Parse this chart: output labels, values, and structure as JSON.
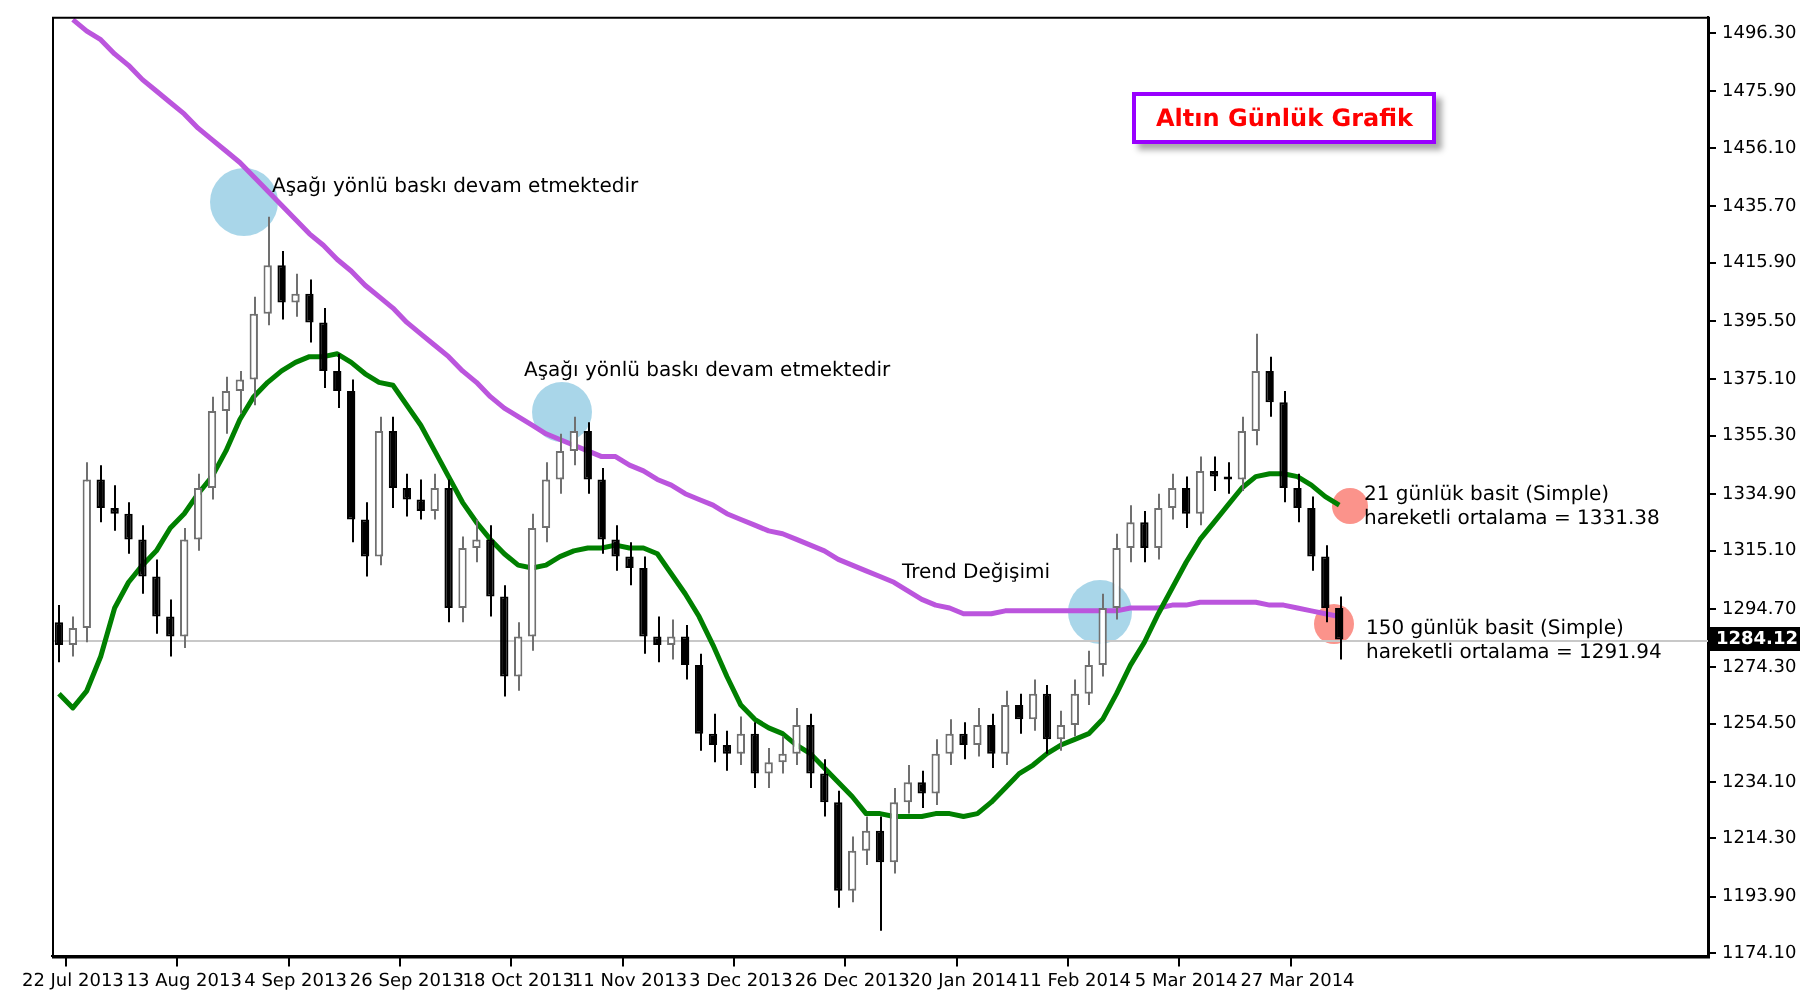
{
  "chart_data": {
    "type": "candlestick",
    "title": "Altın Günlük Grafik",
    "categories": [
      null,
      "22 Jul 2013",
      null,
      null,
      null,
      null,
      null,
      null,
      null,
      "13 Aug 2013",
      null,
      null,
      null,
      null,
      null,
      null,
      null,
      "4 Sep 2013",
      null,
      null,
      null,
      null,
      null,
      null,
      null,
      "26 Sep 2013",
      null,
      null,
      null,
      null,
      null,
      null,
      null,
      "18 Oct 2013",
      null,
      null,
      null,
      null,
      null,
      null,
      null,
      "11 Nov 2013",
      null,
      null,
      null,
      null,
      null,
      null,
      null,
      "3 Dec 2013",
      null,
      null,
      null,
      null,
      null,
      null,
      null,
      "26 Dec 2013",
      null,
      null,
      null,
      null,
      null,
      null,
      null,
      "20 Jan 2014",
      null,
      null,
      null,
      null,
      null,
      null,
      null,
      "11 Feb 2014",
      null,
      null,
      null,
      null,
      null,
      null,
      null,
      "5 Mar 2014",
      null,
      null,
      null,
      null,
      null,
      null,
      null,
      "27 Mar 2014",
      null,
      null,
      null,
      null,
      null,
      null,
      null,
      null,
      null,
      null,
      null,
      null,
      null,
      null,
      null,
      null,
      null,
      null,
      null,
      null,
      null,
      null,
      null,
      null,
      null,
      null,
      null,
      null,
      null
    ],
    "ohlc": [
      [
        1290,
        1296,
        1276,
        1282
      ],
      [
        1282,
        1292,
        1278,
        1288
      ],
      [
        1288,
        1346,
        1283,
        1340
      ],
      [
        1340,
        1345,
        1325,
        1330
      ],
      [
        1330,
        1338,
        1322,
        1328
      ],
      [
        1328,
        1332,
        1314,
        1319
      ],
      [
        1319,
        1324,
        1300,
        1306
      ],
      [
        1306,
        1312,
        1286,
        1292
      ],
      [
        1292,
        1298,
        1278,
        1285
      ],
      [
        1285,
        1323,
        1281,
        1319
      ],
      [
        1319,
        1342,
        1315,
        1337
      ],
      [
        1337,
        1369,
        1333,
        1364
      ],
      [
        1364,
        1376,
        1356,
        1371
      ],
      [
        1371,
        1378,
        1363,
        1375
      ],
      [
        1375,
        1404,
        1366,
        1398
      ],
      [
        1398,
        1432,
        1394,
        1415
      ],
      [
        1415,
        1420,
        1396,
        1402
      ],
      [
        1402,
        1412,
        1397,
        1405
      ],
      [
        1405,
        1410,
        1388,
        1395
      ],
      [
        1395,
        1400,
        1372,
        1378
      ],
      [
        1378,
        1384,
        1365,
        1371
      ],
      [
        1371,
        1375,
        1318,
        1326
      ],
      [
        1326,
        1332,
        1306,
        1313
      ],
      [
        1313,
        1362,
        1310,
        1357
      ],
      [
        1357,
        1362,
        1330,
        1337
      ],
      [
        1337,
        1342,
        1327,
        1333
      ],
      [
        1333,
        1340,
        1326,
        1329
      ],
      [
        1329,
        1342,
        1326,
        1337
      ],
      [
        1337,
        1340,
        1290,
        1295
      ],
      [
        1295,
        1320,
        1290,
        1316
      ],
      [
        1316,
        1326,
        1311,
        1319
      ],
      [
        1319,
        1324,
        1292,
        1299
      ],
      [
        1299,
        1303,
        1264,
        1271
      ],
      [
        1271,
        1290,
        1266,
        1285
      ],
      [
        1285,
        1328,
        1280,
        1323
      ],
      [
        1323,
        1346,
        1318,
        1340
      ],
      [
        1340,
        1356,
        1335,
        1350
      ],
      [
        1350,
        1362,
        1345,
        1357
      ],
      [
        1357,
        1360,
        1335,
        1340
      ],
      [
        1340,
        1344,
        1314,
        1319
      ],
      [
        1319,
        1324,
        1308,
        1313
      ],
      [
        1313,
        1318,
        1303,
        1309
      ],
      [
        1309,
        1313,
        1279,
        1285
      ],
      [
        1285,
        1292,
        1276,
        1282
      ],
      [
        1282,
        1291,
        1277,
        1285
      ],
      [
        1285,
        1289,
        1270,
        1275
      ],
      [
        1275,
        1279,
        1245,
        1251
      ],
      [
        1251,
        1258,
        1241,
        1247
      ],
      [
        1247,
        1252,
        1238,
        1244
      ],
      [
        1244,
        1257,
        1240,
        1251
      ],
      [
        1251,
        1255,
        1232,
        1237
      ],
      [
        1237,
        1246,
        1232,
        1241
      ],
      [
        1241,
        1250,
        1237,
        1244
      ],
      [
        1244,
        1260,
        1240,
        1254
      ],
      [
        1254,
        1258,
        1232,
        1237
      ],
      [
        1237,
        1242,
        1222,
        1227
      ],
      [
        1227,
        1231,
        1190,
        1196
      ],
      [
        1196,
        1215,
        1192,
        1210
      ],
      [
        1210,
        1222,
        1205,
        1217
      ],
      [
        1217,
        1222,
        1182,
        1206
      ],
      [
        1206,
        1232,
        1202,
        1227
      ],
      [
        1227,
        1240,
        1223,
        1234
      ],
      [
        1234,
        1238,
        1225,
        1230
      ],
      [
        1230,
        1249,
        1226,
        1244
      ],
      [
        1244,
        1256,
        1240,
        1251
      ],
      [
        1251,
        1255,
        1242,
        1247
      ],
      [
        1247,
        1260,
        1243,
        1254
      ],
      [
        1254,
        1258,
        1239,
        1244
      ],
      [
        1244,
        1266,
        1240,
        1261
      ],
      [
        1261,
        1265,
        1251,
        1256
      ],
      [
        1256,
        1270,
        1252,
        1265
      ],
      [
        1265,
        1268,
        1244,
        1249
      ],
      [
        1249,
        1259,
        1245,
        1254
      ],
      [
        1254,
        1270,
        1250,
        1265
      ],
      [
        1265,
        1280,
        1261,
        1275
      ],
      [
        1275,
        1300,
        1271,
        1295
      ],
      [
        1295,
        1321,
        1291,
        1316
      ],
      [
        1316,
        1331,
        1311,
        1325
      ],
      [
        1325,
        1329,
        1311,
        1316
      ],
      [
        1316,
        1335,
        1312,
        1330
      ],
      [
        1330,
        1342,
        1326,
        1337
      ],
      [
        1337,
        1341,
        1323,
        1328
      ],
      [
        1328,
        1348,
        1324,
        1343
      ],
      [
        1343,
        1348,
        1336,
        1341
      ],
      [
        1341,
        1346,
        1335,
        1340
      ],
      [
        1340,
        1362,
        1336,
        1357
      ],
      [
        1357,
        1391,
        1352,
        1378
      ],
      [
        1378,
        1383,
        1362,
        1367
      ],
      [
        1367,
        1371,
        1332,
        1337
      ],
      [
        1337,
        1342,
        1325,
        1330
      ],
      [
        1330,
        1334,
        1308,
        1313
      ],
      [
        1313,
        1317,
        1290,
        1295
      ],
      [
        1295,
        1299,
        1277,
        1284
      ],
      null,
      null,
      null,
      null,
      null,
      null,
      null,
      null,
      null,
      null,
      null,
      null,
      null,
      null,
      null,
      null,
      null,
      null,
      null,
      null,
      null,
      null,
      null,
      null,
      null,
      null
    ],
    "series": [
      {
        "type": "line",
        "color": "#008000",
        "values": [
          1265,
          1260,
          1266,
          1278,
          1295,
          1304,
          1310,
          1315,
          1323,
          1328,
          1335,
          1341,
          1350,
          1361,
          1369,
          1374,
          1378,
          1381,
          1383,
          1383,
          1384,
          1381,
          1377,
          1374,
          1373,
          1366,
          1359,
          1350,
          1341,
          1332,
          1325,
          1319,
          1314,
          1310,
          1309,
          1310,
          1313,
          1315,
          1316,
          1316,
          1317,
          1316,
          1316,
          1314,
          1307,
          1300,
          1292,
          1282,
          1271,
          1261,
          1256,
          1253,
          1251,
          1247,
          1244,
          1239,
          1234,
          1229,
          1223,
          1223,
          1222,
          1222,
          1222,
          1223,
          1223,
          1222,
          1223,
          1227,
          1232,
          1237,
          1240,
          1244,
          1247,
          1249,
          1251,
          1256,
          1265,
          1275,
          1283,
          1293,
          1302,
          1311,
          1319,
          1325,
          1331,
          1337,
          1341,
          1342,
          1342,
          1341,
          1338,
          1334,
          1331,
          null,
          null,
          null,
          null,
          null,
          null,
          null,
          null,
          null,
          null,
          null,
          null,
          null,
          null,
          null,
          null,
          null,
          null,
          null,
          null,
          null,
          null,
          null,
          null,
          null,
          null
        ]
      },
      {
        "type": "line",
        "color": "#bb55dd",
        "values": [
          null,
          1501,
          1497,
          1494,
          1489,
          1485,
          1480,
          1476,
          1472,
          1468,
          1463,
          1459,
          1455,
          1451,
          1446,
          1441,
          1436,
          1431,
          1426,
          1422,
          1417,
          1413,
          1408,
          1404,
          1400,
          1395,
          1391,
          1387,
          1383,
          1378,
          1374,
          1369,
          1365,
          1362,
          1359,
          1356,
          1354,
          1352,
          1350,
          1348,
          1348,
          1345,
          1343,
          1340,
          1338,
          1335,
          1333,
          1331,
          1328,
          1326,
          1324,
          1322,
          1321,
          1319,
          1317,
          1315,
          1312,
          1310,
          1308,
          1306,
          1304,
          1301,
          1298,
          1296,
          1295,
          1293,
          1293,
          1293,
          1294,
          1294,
          1294,
          1294,
          1294,
          1294,
          1294,
          1294,
          1294,
          1295,
          1295,
          1295,
          1296,
          1296,
          1297,
          1297,
          1297,
          1297,
          1297,
          1296,
          1296,
          1295,
          1294,
          1293,
          1292,
          null,
          null,
          null,
          null,
          null,
          null,
          null,
          null,
          null,
          null,
          null,
          null,
          null,
          null,
          null,
          null,
          null,
          null,
          null,
          null,
          null,
          null,
          null,
          null,
          null,
          null
        ]
      }
    ],
    "ylim": [
      1173,
      1502
    ],
    "yticks": [
      {
        "value": 1174.1,
        "label": "1174.10"
      },
      {
        "value": 1193.9,
        "label": "1193.90"
      },
      {
        "value": 1214.3,
        "label": "1214.30"
      },
      {
        "value": 1234.1,
        "label": "1234.10"
      },
      {
        "value": 1254.5,
        "label": "1254.50"
      },
      {
        "value": 1274.3,
        "label": "1274.30"
      },
      {
        "value": 1294.7,
        "label": "1294.70"
      },
      {
        "value": 1315.1,
        "label": "1315.10"
      },
      {
        "value": 1334.9,
        "label": "1334.90"
      },
      {
        "value": 1355.3,
        "label": "1355.30"
      },
      {
        "value": 1375.1,
        "label": "1375.10"
      },
      {
        "value": 1395.5,
        "label": "1395.50"
      },
      {
        "value": 1415.9,
        "label": "1415.90"
      },
      {
        "value": 1435.7,
        "label": "1435.70"
      },
      {
        "value": 1456.1,
        "label": "1456.10"
      },
      {
        "value": 1475.9,
        "label": "1475.90"
      },
      {
        "value": 1496.3,
        "label": "1496.30"
      }
    ],
    "ref_lines": [
      {
        "axis": "y",
        "value": 1284.12,
        "label": "1284.12",
        "color": "#c8c8c8"
      }
    ],
    "annotations": [
      "Aşağı yönlü baskı devam etmektedir",
      "Aşağı yönlü baskı devam etmektedir",
      "Trend Değişimi",
      "21 günlük basit (Simple)\nhareketli ortalama = 1331.38",
      "150 günlük basit (Simple)\nhareketli ortalama = 1291.94"
    ]
  }
}
